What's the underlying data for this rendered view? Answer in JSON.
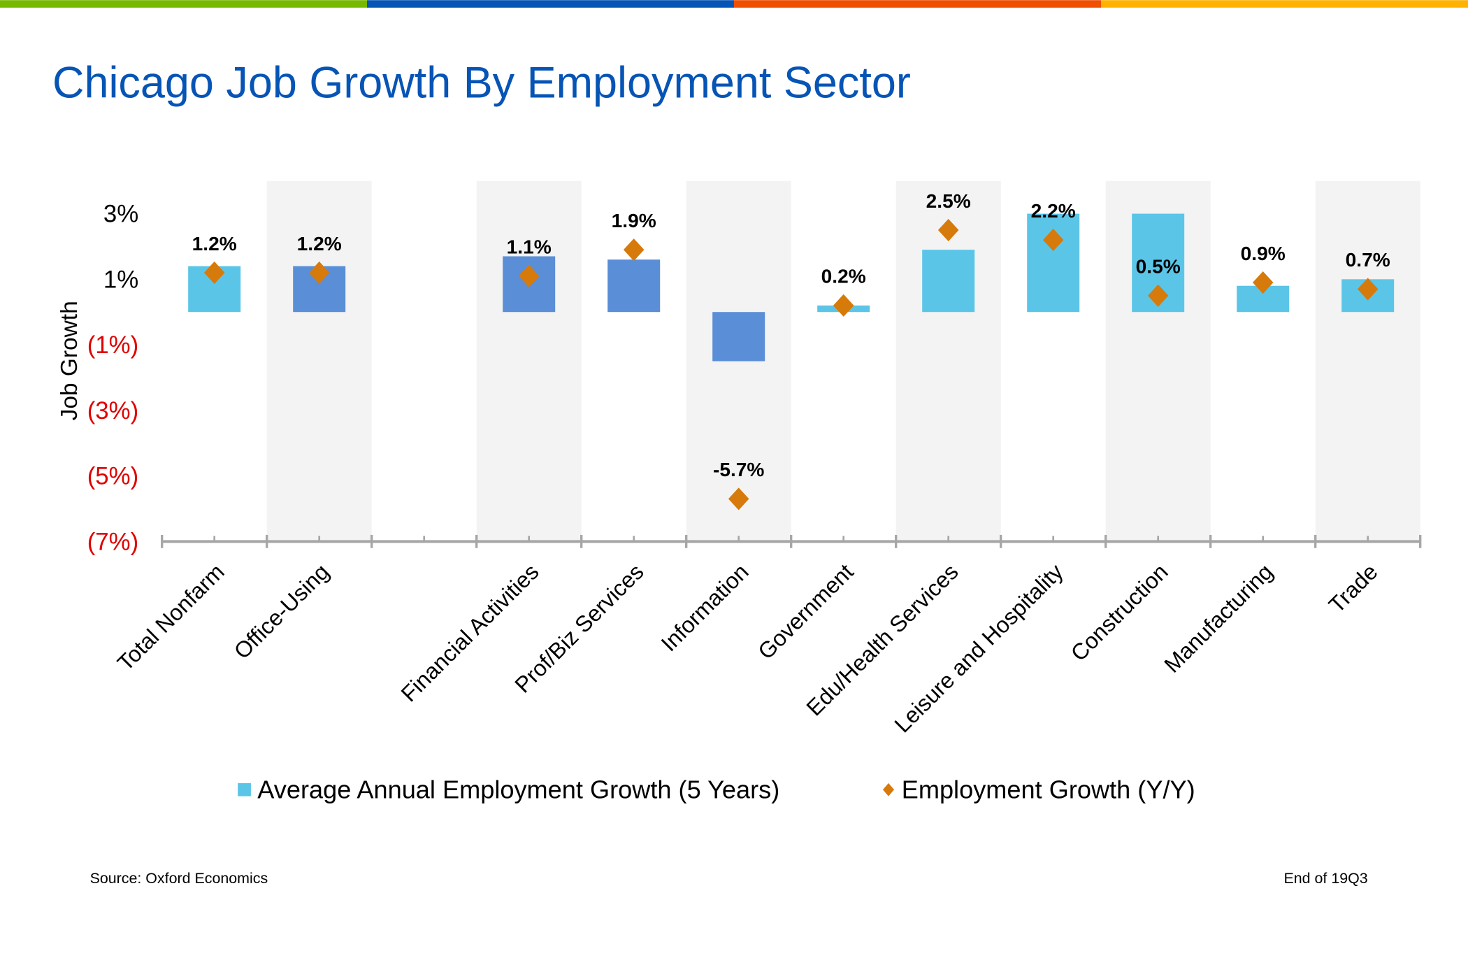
{
  "title": "Chicago Job Growth By Employment Sector",
  "stripe_colors": [
    "#77B900",
    "#0654B5",
    "#F04E00",
    "#FFB300"
  ],
  "colors": {
    "title": "#0654B5",
    "bar_light": "#5BC5E8",
    "bar_dark": "#5A8ED6",
    "diamond": "#D67A0C",
    "band": "#F3F3F3",
    "axis": "#A6A6A6",
    "neg_tick": "#E00000"
  },
  "chart_data": {
    "type": "bar",
    "title": "Chicago Job Growth By Employment Sector",
    "ylabel": "Job Growth",
    "xlabel": "",
    "ylim": [
      -7,
      4
    ],
    "y_ticks": [
      3,
      1,
      -1,
      -3,
      -5,
      -7
    ],
    "y_tick_labels": [
      "3%",
      "1%",
      "(1%)",
      "(3%)",
      "(5%)",
      "(7%)"
    ],
    "grid": false,
    "legend_position": "bottom",
    "categories": [
      "Total Nonfarm",
      "Office-Using",
      "",
      "Financial Activities",
      "Prof/Biz Services",
      "Information",
      "Government",
      "Edu/Health Services",
      "Leisure and Hospitality",
      "Construction",
      "Manufacturing",
      "Trade"
    ],
    "bar_style": [
      "light",
      "dark",
      "none",
      "dark",
      "dark",
      "dark",
      "light",
      "light",
      "light",
      "light",
      "light",
      "light"
    ],
    "series": [
      {
        "name": "Average Annual Employment Growth (5 Years)",
        "type": "bar",
        "values": [
          1.4,
          1.4,
          null,
          1.7,
          1.6,
          -1.5,
          0.2,
          1.9,
          3.0,
          3.0,
          0.8,
          1.0
        ]
      },
      {
        "name": "Employment Growth (Y/Y)",
        "type": "marker",
        "values": [
          1.2,
          1.2,
          null,
          1.1,
          1.9,
          -5.7,
          0.2,
          2.5,
          2.2,
          0.5,
          0.9,
          0.7
        ],
        "labels": [
          "1.2%",
          "1.2%",
          "",
          "1.1%",
          "1.9%",
          "-5.7%",
          "0.2%",
          "2.5%",
          "2.2%",
          "0.5%",
          "0.9%",
          "0.7%"
        ]
      }
    ]
  },
  "footer": {
    "source": "Source: Oxford Economics",
    "period": "End of 19Q3"
  }
}
